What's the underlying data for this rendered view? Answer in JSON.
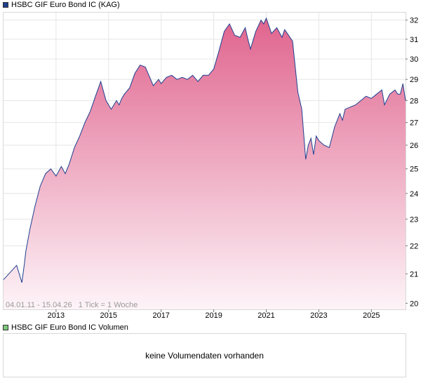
{
  "price_legend": {
    "label": "HSBC GIF Euro Bond IC (KAG)",
    "color": "#1f3f8f"
  },
  "volume_legend": {
    "label": "HSBC GIF Euro Bond IC Volumen",
    "color": "#7cc87c"
  },
  "range_label": "04.01.11 - 15.04.26   1 Tick = 1 Woche",
  "volume_message": "keine Volumendaten vorhanden",
  "colors": {
    "line": "#1f3f8f",
    "fill_top": "#e0648e",
    "fill_bottom": "#fdf4f8",
    "grid": "#e6e6e6"
  },
  "chart_data": {
    "type": "area",
    "scale": "log",
    "x_tick_labels": [
      "2013",
      "2015",
      "2017",
      "2019",
      "2021",
      "2023",
      "2025"
    ],
    "x_ticks": [
      2013,
      2015,
      2017,
      2019,
      2021,
      2023,
      2025
    ],
    "y_ticks": [
      20,
      21,
      22,
      23,
      24,
      25,
      26,
      27,
      28,
      29,
      30,
      31,
      32
    ],
    "xlim": [
      2011.0,
      2026.3
    ],
    "ylim": [
      19.8,
      32.4
    ],
    "grid": true,
    "legend_position": "top-left",
    "series": [
      {
        "name": "HSBC GIF Euro Bond IC (KAG)",
        "x": [
          2011.0,
          2011.3,
          2011.5,
          2011.7,
          2011.8,
          2011.85,
          2012.0,
          2012.2,
          2012.4,
          2012.6,
          2012.8,
          2013.0,
          2013.2,
          2013.35,
          2013.5,
          2013.7,
          2013.9,
          2014.1,
          2014.3,
          2014.5,
          2014.7,
          2014.9,
          2015.1,
          2015.3,
          2015.4,
          2015.5,
          2015.6,
          2015.8,
          2016.0,
          2016.2,
          2016.4,
          2016.6,
          2016.7,
          2016.9,
          2017.0,
          2017.2,
          2017.4,
          2017.6,
          2017.8,
          2018.0,
          2018.2,
          2018.4,
          2018.6,
          2018.8,
          2019.0,
          2019.2,
          2019.4,
          2019.6,
          2019.8,
          2020.0,
          2020.2,
          2020.3,
          2020.4,
          2020.6,
          2020.8,
          2020.9,
          2021.0,
          2021.2,
          2021.4,
          2021.6,
          2021.7,
          2021.8,
          2022.0,
          2022.2,
          2022.35,
          2022.5,
          2022.6,
          2022.7,
          2022.8,
          2022.9,
          2023.0,
          2023.2,
          2023.4,
          2023.6,
          2023.8,
          2023.9,
          2024.0,
          2024.2,
          2024.4,
          2024.6,
          2024.8,
          2025.0,
          2025.2,
          2025.4,
          2025.5,
          2025.7,
          2025.9,
          2026.0,
          2026.1,
          2026.2,
          2026.3
        ],
        "values": [
          20.8,
          21.1,
          21.3,
          20.7,
          21.4,
          21.8,
          22.6,
          23.5,
          24.3,
          24.8,
          25.0,
          24.7,
          25.1,
          24.8,
          25.2,
          25.9,
          26.4,
          27.0,
          27.5,
          28.2,
          28.9,
          28.0,
          27.6,
          28.0,
          27.8,
          28.1,
          28.3,
          28.6,
          29.3,
          29.7,
          29.6,
          29.0,
          28.7,
          29.0,
          28.8,
          29.1,
          29.2,
          29.0,
          29.1,
          29.0,
          29.2,
          28.9,
          29.2,
          29.2,
          29.5,
          30.4,
          31.4,
          31.8,
          31.2,
          31.1,
          31.6,
          31.0,
          30.5,
          31.4,
          32.0,
          31.8,
          32.1,
          31.3,
          31.6,
          31.1,
          31.5,
          31.3,
          30.9,
          28.4,
          27.6,
          25.4,
          26.0,
          26.3,
          25.6,
          26.4,
          26.2,
          26.0,
          25.9,
          26.8,
          27.4,
          27.1,
          27.6,
          27.7,
          27.8,
          28.0,
          28.2,
          28.1,
          28.3,
          28.5,
          27.8,
          28.3,
          28.5,
          28.3,
          28.3,
          28.8,
          28.0
        ]
      }
    ]
  }
}
